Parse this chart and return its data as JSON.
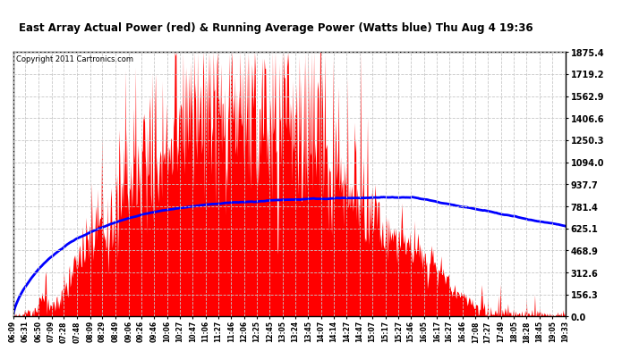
{
  "title": "East Array Actual Power (red) & Running Average Power (Watts blue) Thu Aug 4 19:36",
  "copyright": "Copyright 2011 Cartronics.com",
  "y_max": 1875.4,
  "y_min": 0.0,
  "y_ticks": [
    0.0,
    156.3,
    312.6,
    468.9,
    625.1,
    781.4,
    937.7,
    1094.0,
    1250.3,
    1406.6,
    1562.9,
    1719.2,
    1875.4
  ],
  "x_labels": [
    "06:09",
    "06:31",
    "06:50",
    "07:09",
    "07:28",
    "07:48",
    "08:09",
    "08:29",
    "08:49",
    "09:06",
    "09:26",
    "09:46",
    "10:06",
    "10:27",
    "10:47",
    "11:06",
    "11:27",
    "11:46",
    "12:06",
    "12:25",
    "12:45",
    "13:05",
    "13:24",
    "13:45",
    "14:07",
    "14:14",
    "14:27",
    "14:47",
    "15:07",
    "15:17",
    "15:27",
    "15:46",
    "16:05",
    "16:17",
    "16:27",
    "16:46",
    "17:08",
    "17:27",
    "17:49",
    "18:05",
    "18:28",
    "18:45",
    "19:05",
    "19:33"
  ],
  "background_color": "#ffffff",
  "fill_color": "#ff0000",
  "line_color": "#0000ff",
  "grid_color": "#c8c8c8",
  "title_color": "#000000",
  "border_color": "#000000"
}
